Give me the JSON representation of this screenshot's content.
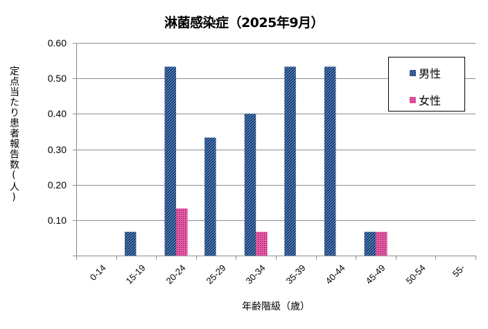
{
  "chart_data": {
    "type": "bar",
    "title": "淋菌感染症（2025年9月）",
    "xlabel": "年齢階級（歳）",
    "ylabel": "定点当たり患者報告数(人)",
    "categories": [
      "0-14",
      "15-19",
      "20-24",
      "25-29",
      "30-34",
      "35-39",
      "40-44",
      "45-49",
      "50-54",
      "55-"
    ],
    "series": [
      {
        "name": "男性",
        "color": "#4a86d8",
        "pattern": "diagonal-hatch",
        "values": [
          0,
          0.067,
          0.533,
          0.333,
          0.4,
          0.533,
          0.533,
          0.067,
          0,
          0
        ]
      },
      {
        "name": "女性",
        "color": "#ee55a8",
        "pattern": "dotted-grid",
        "values": [
          0,
          0,
          0.133,
          0,
          0.067,
          0,
          0,
          0.067,
          0,
          0
        ]
      }
    ],
    "ylim": [
      0,
      0.6
    ],
    "yticks": [
      "0.10",
      "0.20",
      "0.30",
      "0.40",
      "0.50",
      "0.60"
    ],
    "grid": true,
    "legend_position": "top-right-inside"
  }
}
